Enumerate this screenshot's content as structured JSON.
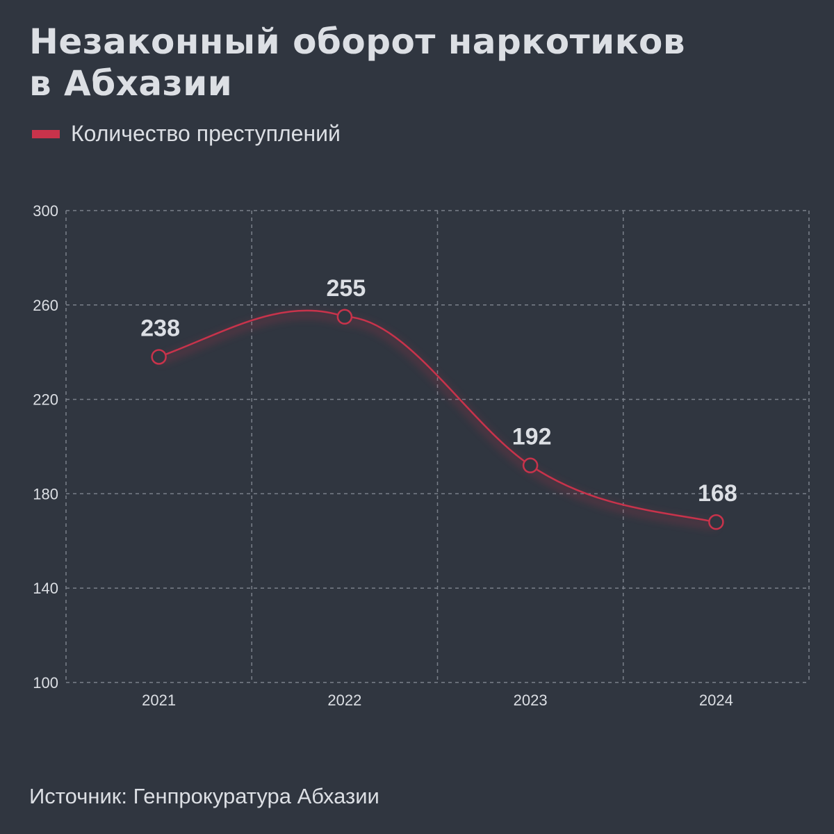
{
  "header": {
    "title_line1": "Незаконный оборот наркотиков",
    "title_line2": "в Абхазии"
  },
  "legend": {
    "label": "Количество преступлений",
    "color": "#c8334b"
  },
  "footer": {
    "source": "Источник: Генпрокуратура Абхазии"
  },
  "colors": {
    "background": "#303640",
    "line": "#c8334b",
    "grid": "#7a808a",
    "text": "#dcdfe4"
  },
  "chart_data": {
    "type": "line",
    "title": "Незаконный оборот наркотиков в Абхазии",
    "xlabel": "",
    "ylabel": "",
    "categories": [
      "2021",
      "2022",
      "2023",
      "2024"
    ],
    "series": [
      {
        "name": "Количество преступлений",
        "values": [
          238,
          255,
          192,
          168
        ]
      }
    ],
    "data_labels": [
      "238",
      "255",
      "192",
      "168"
    ],
    "yticks": [
      "100",
      "140",
      "180",
      "220",
      "260",
      "300"
    ],
    "ylim": [
      100,
      300
    ],
    "grid": true,
    "grid_style": "dashed",
    "legend_position": "top-left",
    "smooth": true,
    "markers": "hollow-circle"
  }
}
